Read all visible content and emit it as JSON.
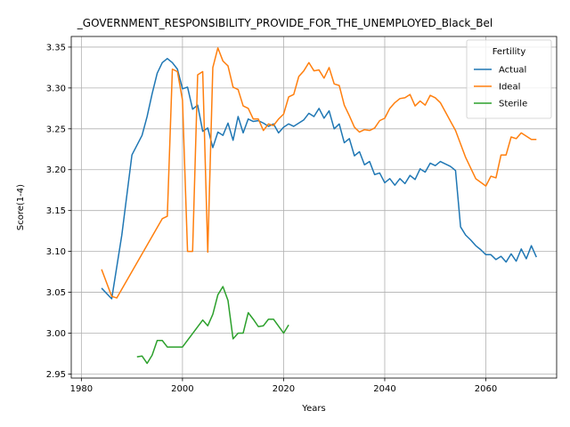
{
  "chart_data": {
    "type": "line",
    "title": "_GOVERNMENT_RESPONSIBILITY_PROVIDE_FOR_THE_UNEMPLOYED_Black_Bel",
    "xlabel": "Years",
    "ylabel": "Score(1-4)",
    "xlim": [
      1978,
      2074
    ],
    "ylim": [
      2.945,
      3.363
    ],
    "xticks": [
      1980,
      2000,
      2020,
      2040,
      2060
    ],
    "yticks": [
      2.95,
      3.0,
      3.05,
      3.1,
      3.15,
      3.2,
      3.25,
      3.3,
      3.35
    ],
    "ytick_labels": [
      "2.95",
      "3.00",
      "3.05",
      "3.10",
      "3.15",
      "3.20",
      "3.25",
      "3.30",
      "3.35"
    ],
    "grid": true,
    "legend": {
      "title": "Fertility",
      "placement": "top-right"
    },
    "series": [
      {
        "name": "Actual",
        "color": "#1f77b4",
        "points": [
          [
            1984,
            3.055
          ],
          [
            1986,
            3.042
          ],
          [
            1988,
            3.12
          ],
          [
            1990,
            3.218
          ],
          [
            1992,
            3.242
          ],
          [
            1993,
            3.265
          ],
          [
            1994,
            3.293
          ],
          [
            1995,
            3.318
          ],
          [
            1996,
            3.331
          ],
          [
            1997,
            3.336
          ],
          [
            1998,
            3.331
          ],
          [
            1999,
            3.323
          ],
          [
            2000,
            3.299
          ],
          [
            2001,
            3.301
          ],
          [
            2002,
            3.274
          ],
          [
            2003,
            3.279
          ],
          [
            2004,
            3.247
          ],
          [
            2005,
            3.251
          ],
          [
            2006,
            3.227
          ],
          [
            2007,
            3.246
          ],
          [
            2008,
            3.242
          ],
          [
            2009,
            3.257
          ],
          [
            2010,
            3.236
          ],
          [
            2011,
            3.265
          ],
          [
            2012,
            3.245
          ],
          [
            2013,
            3.262
          ],
          [
            2014,
            3.259
          ],
          [
            2015,
            3.26
          ],
          [
            2016,
            3.257
          ],
          [
            2017,
            3.253
          ],
          [
            2018,
            3.256
          ],
          [
            2019,
            3.245
          ],
          [
            2020,
            3.252
          ],
          [
            2021,
            3.256
          ],
          [
            2022,
            3.253
          ],
          [
            2023,
            3.257
          ],
          [
            2024,
            3.261
          ],
          [
            2025,
            3.269
          ],
          [
            2026,
            3.265
          ],
          [
            2027,
            3.275
          ],
          [
            2028,
            3.263
          ],
          [
            2029,
            3.272
          ],
          [
            2030,
            3.25
          ],
          [
            2031,
            3.256
          ],
          [
            2032,
            3.233
          ],
          [
            2033,
            3.238
          ],
          [
            2034,
            3.217
          ],
          [
            2035,
            3.222
          ],
          [
            2036,
            3.206
          ],
          [
            2037,
            3.21
          ],
          [
            2038,
            3.194
          ],
          [
            2039,
            3.196
          ],
          [
            2040,
            3.184
          ],
          [
            2041,
            3.189
          ],
          [
            2042,
            3.181
          ],
          [
            2043,
            3.189
          ],
          [
            2044,
            3.183
          ],
          [
            2045,
            3.193
          ],
          [
            2046,
            3.188
          ],
          [
            2047,
            3.201
          ],
          [
            2048,
            3.197
          ],
          [
            2049,
            3.208
          ],
          [
            2050,
            3.205
          ],
          [
            2051,
            3.21
          ],
          [
            2052,
            3.207
          ],
          [
            2053,
            3.204
          ],
          [
            2054,
            3.199
          ],
          [
            2055,
            3.13
          ],
          [
            2056,
            3.12
          ],
          [
            2057,
            3.114
          ],
          [
            2058,
            3.107
          ],
          [
            2059,
            3.102
          ],
          [
            2060,
            3.096
          ],
          [
            2061,
            3.096
          ],
          [
            2062,
            3.09
          ],
          [
            2063,
            3.094
          ],
          [
            2064,
            3.087
          ],
          [
            2065,
            3.097
          ],
          [
            2066,
            3.088
          ],
          [
            2067,
            3.103
          ],
          [
            2068,
            3.091
          ],
          [
            2069,
            3.107
          ],
          [
            2070,
            3.093
          ]
        ]
      },
      {
        "name": "Ideal",
        "color": "#ff7f0e",
        "points": [
          [
            1984,
            3.078
          ],
          [
            1986,
            3.045
          ],
          [
            1987,
            3.043
          ],
          [
            1996,
            3.14
          ],
          [
            1997,
            3.143
          ],
          [
            1998,
            3.323
          ],
          [
            1999,
            3.32
          ],
          [
            2000,
            3.285
          ],
          [
            2001,
            3.1
          ],
          [
            2002,
            3.1
          ],
          [
            2003,
            3.316
          ],
          [
            2004,
            3.32
          ],
          [
            2005,
            3.099
          ],
          [
            2006,
            3.325
          ],
          [
            2007,
            3.349
          ],
          [
            2008,
            3.333
          ],
          [
            2009,
            3.327
          ],
          [
            2010,
            3.301
          ],
          [
            2011,
            3.298
          ],
          [
            2012,
            3.278
          ],
          [
            2013,
            3.275
          ],
          [
            2014,
            3.262
          ],
          [
            2015,
            3.262
          ],
          [
            2016,
            3.248
          ],
          [
            2017,
            3.256
          ],
          [
            2018,
            3.254
          ],
          [
            2019,
            3.262
          ],
          [
            2020,
            3.268
          ],
          [
            2021,
            3.289
          ],
          [
            2022,
            3.292
          ],
          [
            2023,
            3.314
          ],
          [
            2024,
            3.321
          ],
          [
            2025,
            3.331
          ],
          [
            2026,
            3.321
          ],
          [
            2027,
            3.322
          ],
          [
            2028,
            3.312
          ],
          [
            2029,
            3.325
          ],
          [
            2030,
            3.305
          ],
          [
            2031,
            3.303
          ],
          [
            2032,
            3.279
          ],
          [
            2033,
            3.266
          ],
          [
            2034,
            3.252
          ],
          [
            2035,
            3.246
          ],
          [
            2036,
            3.249
          ],
          [
            2037,
            3.248
          ],
          [
            2038,
            3.251
          ],
          [
            2039,
            3.26
          ],
          [
            2040,
            3.263
          ],
          [
            2041,
            3.275
          ],
          [
            2042,
            3.282
          ],
          [
            2043,
            3.287
          ],
          [
            2044,
            3.288
          ],
          [
            2045,
            3.292
          ],
          [
            2046,
            3.278
          ],
          [
            2047,
            3.284
          ],
          [
            2048,
            3.279
          ],
          [
            2049,
            3.291
          ],
          [
            2050,
            3.288
          ],
          [
            2051,
            3.282
          ],
          [
            2054,
            3.248
          ],
          [
            2056,
            3.215
          ],
          [
            2058,
            3.189
          ],
          [
            2060,
            3.18
          ],
          [
            2061,
            3.192
          ],
          [
            2062,
            3.19
          ],
          [
            2063,
            3.218
          ],
          [
            2064,
            3.218
          ],
          [
            2065,
            3.24
          ],
          [
            2066,
            3.238
          ],
          [
            2067,
            3.245
          ],
          [
            2069,
            3.237
          ],
          [
            2070,
            3.237
          ]
        ]
      },
      {
        "name": "Sterile",
        "color": "#2ca02c",
        "points": [
          [
            1991,
            2.971
          ],
          [
            1992,
            2.972
          ],
          [
            1993,
            2.963
          ],
          [
            1994,
            2.973
          ],
          [
            1995,
            2.991
          ],
          [
            1996,
            2.991
          ],
          [
            1997,
            2.983
          ],
          [
            1998,
            2.983
          ],
          [
            2000,
            2.983
          ],
          [
            2004,
            3.016
          ],
          [
            2005,
            3.009
          ],
          [
            2006,
            3.023
          ],
          [
            2007,
            3.047
          ],
          [
            2008,
            3.057
          ],
          [
            2009,
            3.04
          ],
          [
            2010,
            2.993
          ],
          [
            2011,
            3.0
          ],
          [
            2012,
            3.0
          ],
          [
            2013,
            3.025
          ],
          [
            2014,
            3.017
          ],
          [
            2015,
            3.008
          ],
          [
            2016,
            3.009
          ],
          [
            2017,
            3.017
          ],
          [
            2018,
            3.017
          ],
          [
            2020,
            3.0
          ],
          [
            2021,
            3.01
          ]
        ]
      }
    ]
  }
}
